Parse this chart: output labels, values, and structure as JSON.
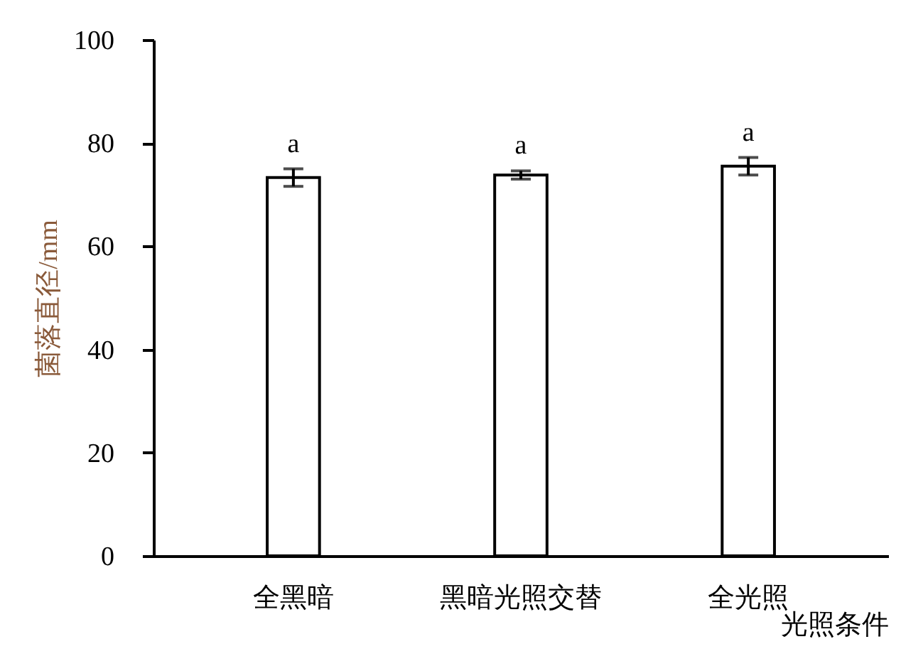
{
  "chart_data": {
    "type": "bar",
    "xlabel": "光照条件",
    "ylabel": "菌落直径/mm",
    "categories": [
      "全黑暗",
      "黑暗光照交替",
      "全光照"
    ],
    "series": [
      {
        "color": "#ffffff",
        "values": [
          73.3,
          73.8,
          75.5
        ],
        "errors": [
          1.7,
          0.8,
          1.7
        ]
      }
    ],
    "ylim": [
      0,
      100
    ],
    "yticks": [
      0,
      20,
      40,
      60,
      80,
      100
    ],
    "grid": false,
    "annotations": [
      "a",
      "a",
      "a"
    ]
  }
}
